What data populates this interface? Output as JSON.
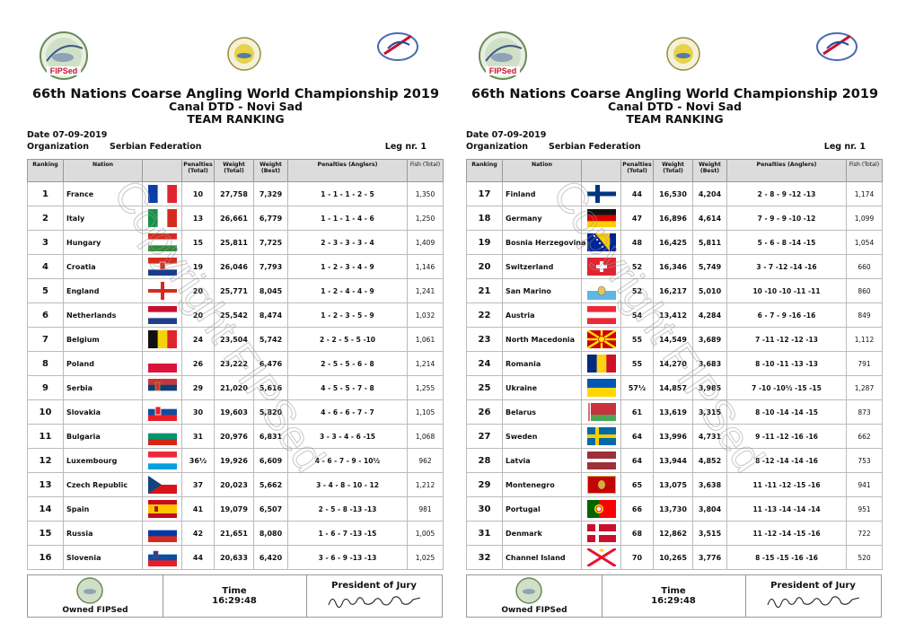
{
  "header": {
    "title": "66th Nations Coarse Angling World Championship 2019",
    "venue": "Canal DTD - Novi Sad",
    "subtitle": "TEAM RANKING",
    "date_label": "Date  07-09-2019",
    "org_label": "Organization",
    "org_value": "Serbian Federation",
    "leg_label": "Leg nr. 1",
    "logo_text": "FIPSed",
    "watermark": "Copyright FIPSed"
  },
  "columns": {
    "ranking": "Ranking",
    "nation": "Nation",
    "pen_total": "Penalties (Total)",
    "weight_total": "Weight (Total)",
    "weight_best": "Weight (Best)",
    "pen_anglers": "Penalties (Anglers)",
    "fish_total": "Fish (Total)"
  },
  "footer": {
    "owned": "Owned FIPSed",
    "time_label": "Time",
    "time_value": "16:29:48",
    "jury_label": "President of Jury"
  },
  "colors": {
    "header_bg": "#dcdcdc",
    "border": "#999999",
    "logo_red": "#c8102e"
  },
  "left_rows": [
    {
      "rank": "1",
      "nation": "France",
      "flag": "france",
      "pen": "10",
      "wt": "27,758",
      "best": "7,329",
      "anglers": "1 - 1 - 1 - 2 - 5",
      "fish": "1,350"
    },
    {
      "rank": "2",
      "nation": "Italy",
      "flag": "italy",
      "pen": "13",
      "wt": "26,661",
      "best": "6,779",
      "anglers": "1 - 1 - 1 - 4 - 6",
      "fish": "1,250"
    },
    {
      "rank": "3",
      "nation": "Hungary",
      "flag": "hungary",
      "pen": "15",
      "wt": "25,811",
      "best": "7,725",
      "anglers": "2 - 3 - 3 - 3 - 4",
      "fish": "1,409"
    },
    {
      "rank": "4",
      "nation": "Croatia",
      "flag": "croatia",
      "pen": "19",
      "wt": "26,046",
      "best": "7,793",
      "anglers": "1 - 2 - 3 - 4 - 9",
      "fish": "1,146"
    },
    {
      "rank": "5",
      "nation": "England",
      "flag": "england",
      "pen": "20",
      "wt": "25,771",
      "best": "8,045",
      "anglers": "1 - 2 - 4 - 4 - 9",
      "fish": "1,241"
    },
    {
      "rank": "6",
      "nation": "Netherlands",
      "flag": "netherlands",
      "pen": "20",
      "wt": "25,542",
      "best": "8,474",
      "anglers": "1 - 2 - 3 - 5 - 9",
      "fish": "1,032"
    },
    {
      "rank": "7",
      "nation": "Belgium",
      "flag": "belgium",
      "pen": "24",
      "wt": "23,504",
      "best": "5,742",
      "anglers": "2 - 2 - 5 - 5 -10",
      "fish": "1,061"
    },
    {
      "rank": "8",
      "nation": "Poland",
      "flag": "poland",
      "pen": "26",
      "wt": "23,222",
      "best": "6,476",
      "anglers": "2 - 5 - 5 - 6 - 8",
      "fish": "1,214"
    },
    {
      "rank": "9",
      "nation": "Serbia",
      "flag": "serbia",
      "pen": "29",
      "wt": "21,020",
      "best": "5,616",
      "anglers": "4 - 5 - 5 - 7 - 8",
      "fish": "1,255"
    },
    {
      "rank": "10",
      "nation": "Slovakia",
      "flag": "slovakia",
      "pen": "30",
      "wt": "19,603",
      "best": "5,820",
      "anglers": "4 - 6 - 6 - 7 - 7",
      "fish": "1,105"
    },
    {
      "rank": "11",
      "nation": "Bulgaria",
      "flag": "bulgaria",
      "pen": "31",
      "wt": "20,976",
      "best": "6,831",
      "anglers": "3 - 3 - 4 - 6 -15",
      "fish": "1,068"
    },
    {
      "rank": "12",
      "nation": "Luxembourg",
      "flag": "luxembourg",
      "pen": "36½",
      "wt": "19,926",
      "best": "6,609",
      "anglers": "4 - 6 - 7 - 9 - 10½",
      "fish": "962"
    },
    {
      "rank": "13",
      "nation": "Czech Republic",
      "flag": "czech",
      "pen": "37",
      "wt": "20,023",
      "best": "5,662",
      "anglers": "3 - 4 - 8 - 10 - 12",
      "fish": "1,212"
    },
    {
      "rank": "14",
      "nation": "Spain",
      "flag": "spain",
      "pen": "41",
      "wt": "19,079",
      "best": "6,507",
      "anglers": "2 - 5 - 8 -13 -13",
      "fish": "981"
    },
    {
      "rank": "15",
      "nation": "Russia",
      "flag": "russia",
      "pen": "42",
      "wt": "21,651",
      "best": "8,080",
      "anglers": "1 - 6 - 7 -13 -15",
      "fish": "1,005"
    },
    {
      "rank": "16",
      "nation": "Slovenia",
      "flag": "slovenia",
      "pen": "44",
      "wt": "20,633",
      "best": "6,420",
      "anglers": "3 - 6 - 9 -13 -13",
      "fish": "1,025"
    }
  ],
  "right_rows": [
    {
      "rank": "17",
      "nation": "Finland",
      "flag": "finland",
      "pen": "44",
      "wt": "16,530",
      "best": "4,204",
      "anglers": "2 - 8 - 9 -12 -13",
      "fish": "1,174"
    },
    {
      "rank": "18",
      "nation": "Germany",
      "flag": "germany",
      "pen": "47",
      "wt": "16,896",
      "best": "4,614",
      "anglers": "7 - 9 - 9 -10 -12",
      "fish": "1,099"
    },
    {
      "rank": "19",
      "nation": "Bosnia Herzegovina",
      "flag": "bosnia",
      "pen": "48",
      "wt": "16,425",
      "best": "5,811",
      "anglers": "5 - 6 - 8 -14 -15",
      "fish": "1,054"
    },
    {
      "rank": "20",
      "nation": "Switzerland",
      "flag": "switzerland",
      "pen": "52",
      "wt": "16,346",
      "best": "5,749",
      "anglers": "3 - 7 -12 -14 -16",
      "fish": "660"
    },
    {
      "rank": "21",
      "nation": "San Marino",
      "flag": "sanmarino",
      "pen": "52",
      "wt": "16,217",
      "best": "5,010",
      "anglers": "10 -10 -10 -11 -11",
      "fish": "860"
    },
    {
      "rank": "22",
      "nation": "Austria",
      "flag": "austria",
      "pen": "54",
      "wt": "13,412",
      "best": "4,284",
      "anglers": "6 - 7 - 9 -16 -16",
      "fish": "849"
    },
    {
      "rank": "23",
      "nation": "North Macedonia",
      "flag": "macedonia",
      "pen": "55",
      "wt": "14,549",
      "best": "3,689",
      "anglers": "7 -11 -12 -12 -13",
      "fish": "1,112"
    },
    {
      "rank": "24",
      "nation": "Romania",
      "flag": "romania",
      "pen": "55",
      "wt": "14,270",
      "best": "3,683",
      "anglers": "8 -10 -11 -13 -13",
      "fish": "791"
    },
    {
      "rank": "25",
      "nation": "Ukraine",
      "flag": "ukraine",
      "pen": "57½",
      "wt": "14,857",
      "best": "3,985",
      "anglers": "7 -10 -10½ -15 -15",
      "fish": "1,287"
    },
    {
      "rank": "26",
      "nation": "Belarus",
      "flag": "belarus",
      "pen": "61",
      "wt": "13,619",
      "best": "3,315",
      "anglers": "8 -10 -14 -14 -15",
      "fish": "873"
    },
    {
      "rank": "27",
      "nation": "Sweden",
      "flag": "sweden",
      "pen": "64",
      "wt": "13,996",
      "best": "4,731",
      "anglers": "9 -11 -12 -16 -16",
      "fish": "662"
    },
    {
      "rank": "28",
      "nation": "Latvia",
      "flag": "latvia",
      "pen": "64",
      "wt": "13,944",
      "best": "4,852",
      "anglers": "8 -12 -14 -14 -16",
      "fish": "753"
    },
    {
      "rank": "29",
      "nation": "Montenegro",
      "flag": "montenegro",
      "pen": "65",
      "wt": "13,075",
      "best": "3,638",
      "anglers": "11 -11 -12 -15 -16",
      "fish": "941"
    },
    {
      "rank": "30",
      "nation": "Portugal",
      "flag": "portugal",
      "pen": "66",
      "wt": "13,730",
      "best": "3,804",
      "anglers": "11 -13 -14 -14 -14",
      "fish": "951"
    },
    {
      "rank": "31",
      "nation": "Denmark",
      "flag": "denmark",
      "pen": "68",
      "wt": "12,862",
      "best": "3,515",
      "anglers": "11 -12 -14 -15 -16",
      "fish": "722"
    },
    {
      "rank": "32",
      "nation": "Channel Island",
      "flag": "channel",
      "pen": "70",
      "wt": "10,265",
      "best": "3,776",
      "anglers": "8 -15 -15 -16 -16",
      "fish": "520"
    }
  ]
}
